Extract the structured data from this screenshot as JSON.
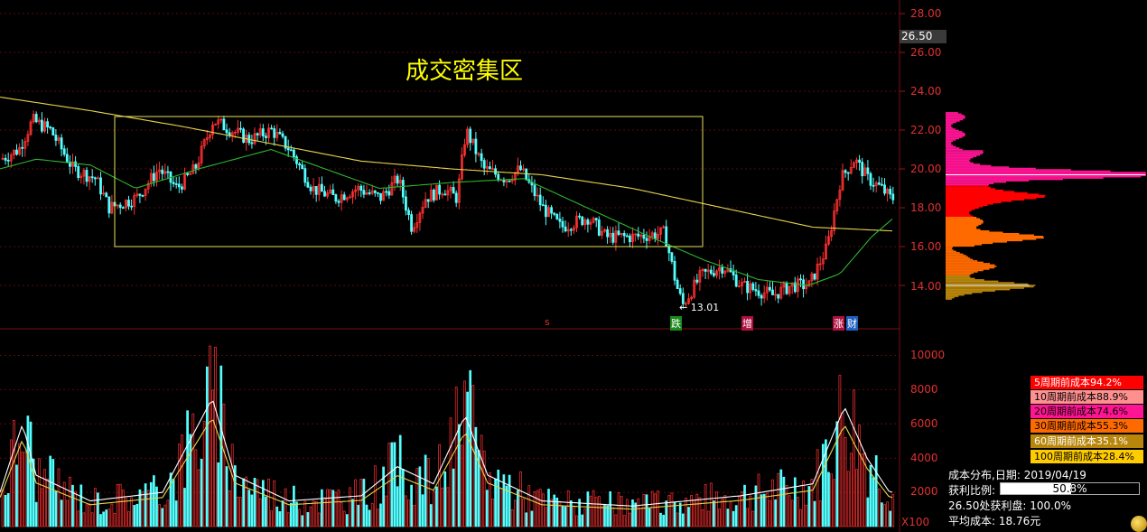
{
  "annotation": {
    "zone_title": "成交密集区",
    "low_label": "13.01"
  },
  "price_axis": {
    "ticks": [
      "28.00",
      "26.50",
      "26.00",
      "24.00",
      "22.00",
      "20.00",
      "18.00",
      "16.00",
      "14.00"
    ],
    "current": "26.50"
  },
  "volume_axis": {
    "ticks": [
      "10000",
      "8000",
      "6000",
      "4000",
      "2000"
    ],
    "unit": "X100"
  },
  "event_markers": [
    {
      "label": "s",
      "color": "#e03030"
    },
    {
      "label": "跌",
      "color": "#1a8a1a"
    },
    {
      "label": "增",
      "color": "#b01040"
    },
    {
      "label": "涨",
      "color": "#b01040"
    },
    {
      "label": "财",
      "color": "#2060c0"
    }
  ],
  "cost_legend": [
    {
      "text": "5周期前成本94.2%",
      "bg": "#ff0000",
      "fg": "#ffffff"
    },
    {
      "text": "10周期前成本88.9%",
      "bg": "#ff9090",
      "fg": "#000000"
    },
    {
      "text": "20周期前成本74.6%",
      "bg": "#ff1493",
      "fg": "#000000"
    },
    {
      "text": "30周期前成本55.3%",
      "bg": "#ff6a00",
      "fg": "#000000"
    },
    {
      "text": "60周期前成本35.1%",
      "bg": "#b8860b",
      "fg": "#ffffff"
    },
    {
      "text": "100周期前成本28.4%",
      "bg": "#ffcc00",
      "fg": "#000000"
    }
  ],
  "cost_info": {
    "date_label": "成本分布,日期:",
    "date": "2019/04/19",
    "profit_label": "获利比例:",
    "profit_value": "50.8%",
    "profit_fraction": 0.508,
    "curve_label": "26.50处获利盘:",
    "curve_value": "100.0%",
    "avg_label": "平均成本:",
    "avg_value": "18.76元"
  },
  "colors": {
    "up": "#ff3030",
    "down": "#54ffff",
    "ma_green": "#2db52d",
    "ma_yellow": "#e8d44d",
    "grid": "#5a0a0a",
    "axis_text": "#e03030"
  },
  "chart_data": {
    "type": "candlestick",
    "price_ylim": [
      12.5,
      28.0
    ],
    "volume_ylim": [
      0,
      11000
    ],
    "price_path_key_points": [
      [
        0,
        20.5
      ],
      [
        20,
        21.0
      ],
      [
        35,
        22.5
      ],
      [
        55,
        22.0
      ],
      [
        80,
        20.0
      ],
      [
        105,
        19.5
      ],
      [
        120,
        18.0
      ],
      [
        150,
        18.5
      ],
      [
        175,
        20.0
      ],
      [
        195,
        19.0
      ],
      [
        215,
        20.0
      ],
      [
        235,
        22.5
      ],
      [
        255,
        22.0
      ],
      [
        275,
        21.5
      ],
      [
        300,
        22.0
      ],
      [
        320,
        21.0
      ],
      [
        345,
        19.0
      ],
      [
        370,
        18.5
      ],
      [
        395,
        19.0
      ],
      [
        420,
        18.5
      ],
      [
        440,
        19.5
      ],
      [
        455,
        17.0
      ],
      [
        470,
        18.5
      ],
      [
        490,
        19.0
      ],
      [
        505,
        18.5
      ],
      [
        515,
        22.0
      ],
      [
        535,
        20.0
      ],
      [
        560,
        19.5
      ],
      [
        575,
        20.0
      ],
      [
        600,
        18.0
      ],
      [
        620,
        17.0
      ],
      [
        650,
        17.5
      ],
      [
        670,
        16.5
      ],
      [
        700,
        16.5
      ],
      [
        735,
        16.7
      ],
      [
        748,
        14.0
      ],
      [
        755,
        13.0
      ],
      [
        775,
        14.5
      ],
      [
        800,
        15.0
      ],
      [
        820,
        14.0
      ],
      [
        855,
        13.5
      ],
      [
        875,
        14.0
      ],
      [
        895,
        14.0
      ],
      [
        915,
        16.0
      ],
      [
        930,
        19.5
      ],
      [
        945,
        20.5
      ],
      [
        960,
        19.5
      ],
      [
        975,
        19.0
      ],
      [
        985,
        18.5
      ]
    ],
    "ma_green_key_points": [
      [
        0,
        20.0
      ],
      [
        40,
        20.5
      ],
      [
        100,
        20.2
      ],
      [
        150,
        19.0
      ],
      [
        220,
        20.0
      ],
      [
        300,
        21.0
      ],
      [
        360,
        20.0
      ],
      [
        420,
        19.0
      ],
      [
        500,
        19.3
      ],
      [
        580,
        19.5
      ],
      [
        650,
        18.0
      ],
      [
        720,
        16.5
      ],
      [
        780,
        15.3
      ],
      [
        840,
        14.3
      ],
      [
        895,
        14.0
      ],
      [
        930,
        14.6
      ],
      [
        965,
        16.5
      ],
      [
        990,
        17.5
      ]
    ],
    "ma_yellow_key_points": [
      [
        0,
        23.7
      ],
      [
        100,
        23.0
      ],
      [
        200,
        22.2
      ],
      [
        300,
        21.3
      ],
      [
        400,
        20.4
      ],
      [
        500,
        20.0
      ],
      [
        600,
        19.7
      ],
      [
        700,
        19.0
      ],
      [
        800,
        18.0
      ],
      [
        900,
        17.0
      ],
      [
        990,
        16.8
      ]
    ],
    "volume_key_points": [
      [
        0,
        2000
      ],
      [
        25,
        6000
      ],
      [
        40,
        3000
      ],
      [
        100,
        1500
      ],
      [
        180,
        2000
      ],
      [
        235,
        7500
      ],
      [
        260,
        3000
      ],
      [
        320,
        1500
      ],
      [
        400,
        1800
      ],
      [
        440,
        3500
      ],
      [
        480,
        2500
      ],
      [
        515,
        6500
      ],
      [
        540,
        3000
      ],
      [
        600,
        1500
      ],
      [
        700,
        1200
      ],
      [
        760,
        1500
      ],
      [
        820,
        1800
      ],
      [
        900,
        2500
      ],
      [
        935,
        7000
      ],
      [
        960,
        4000
      ],
      [
        985,
        2000
      ]
    ],
    "cost_profile_peaks": [
      {
        "price": 19.7,
        "length": 215,
        "color": "#ff1493"
      },
      {
        "price": 18.6,
        "length": 85,
        "color": "#ff0000"
      },
      {
        "price": 16.5,
        "length": 70,
        "color": "#ff6a00"
      },
      {
        "price": 15.0,
        "length": 50,
        "color": "#ff6a00"
      },
      {
        "price": 14.0,
        "length": 90,
        "color": "#b8860b"
      }
    ]
  }
}
